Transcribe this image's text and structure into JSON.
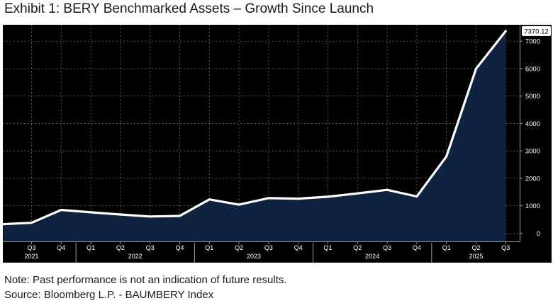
{
  "title": "Exhibit 1: BERY Benchmarked Assets – Growth Since Launch",
  "notes": {
    "line1": "Note: Past performance is not an indication of future results.",
    "line2": "Source: Bloomberg L.P. - BAUMBERY Index"
  },
  "colors": {
    "background": "#000000",
    "area_fill": "#0f2240",
    "line": "#ffffff",
    "grid": "#6a6a6a"
  },
  "chart_data": {
    "type": "area",
    "title": "Exhibit 1: BERY Benchmarked Assets – Growth Since Launch",
    "xlabel": "",
    "ylabel": "",
    "ylim": [
      -300,
      7600
    ],
    "yticks": [
      0,
      1000,
      2000,
      3000,
      4000,
      5000,
      6000,
      7000
    ],
    "grid": true,
    "last_value_label": "7370.12",
    "quarter_ticks": [
      "Q3",
      "Q4",
      "Q1",
      "Q2",
      "Q3",
      "Q4",
      "Q1",
      "Q2",
      "Q3",
      "Q4",
      "Q1",
      "Q2",
      "Q3",
      "Q4",
      "Q1",
      "Q2",
      "Q3"
    ],
    "year_labels": [
      {
        "label": "2021",
        "at": 0
      },
      {
        "label": "2022",
        "at": 3.5
      },
      {
        "label": "2023",
        "at": 7.5
      },
      {
        "label": "2024",
        "at": 11.5
      },
      {
        "label": "2025",
        "at": 15
      }
    ],
    "series": [
      {
        "x": [
          -0.95,
          0,
          1,
          2,
          3,
          4,
          5,
          6,
          7,
          8,
          9,
          10,
          11,
          12,
          13,
          14,
          15,
          16
        ],
        "values": [
          330,
          380,
          850,
          760,
          680,
          610,
          630,
          1230,
          1040,
          1280,
          1260,
          1330,
          1450,
          1580,
          1340,
          2800,
          6000,
          7370.12
        ]
      }
    ]
  }
}
